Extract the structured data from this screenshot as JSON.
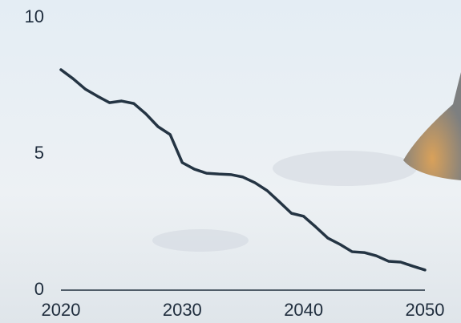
{
  "chart_data": {
    "type": "line",
    "x": [
      2020,
      2021,
      2022,
      2023,
      2024,
      2025,
      2026,
      2027,
      2028,
      2029,
      2030,
      2031,
      2032,
      2033,
      2034,
      2035,
      2036,
      2037,
      2038,
      2039,
      2040,
      2041,
      2042,
      2043,
      2044,
      2045,
      2046,
      2047,
      2048,
      2049,
      2050
    ],
    "values": [
      8.09,
      7.76,
      7.38,
      7.12,
      6.88,
      6.94,
      6.85,
      6.47,
      6.0,
      5.71,
      4.68,
      4.44,
      4.29,
      4.26,
      4.24,
      4.15,
      3.94,
      3.65,
      3.24,
      2.82,
      2.71,
      2.32,
      1.91,
      1.68,
      1.41,
      1.38,
      1.26,
      1.06,
      1.03,
      0.88,
      0.74
    ],
    "color": "#243443",
    "xlim": [
      2020,
      2050
    ],
    "xticks": [
      2020,
      2030,
      2040,
      2050
    ],
    "ylim": [
      0,
      10
    ],
    "yticks": [
      0,
      5,
      10
    ]
  }
}
